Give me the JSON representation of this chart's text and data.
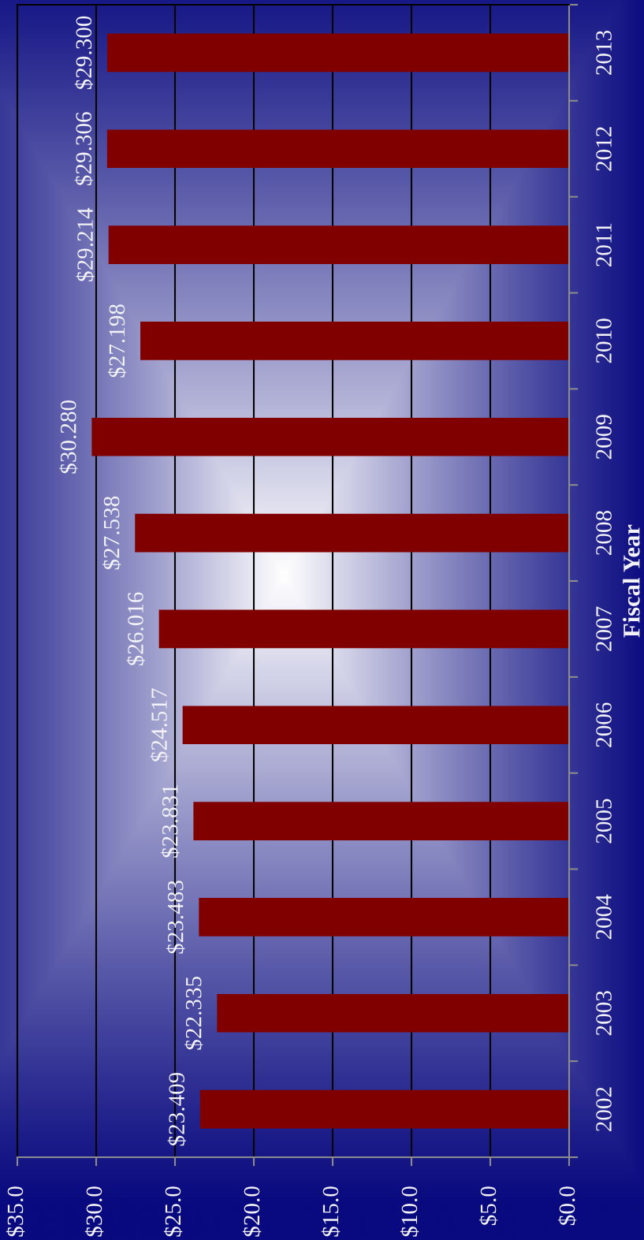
{
  "chart_data": {
    "type": "bar",
    "orientation": "horizontal",
    "ylabel": "Fiscal Year",
    "categories": [
      "2013",
      "2012",
      "2011",
      "2010",
      "2009",
      "2008",
      "2007",
      "2006",
      "2005",
      "2004",
      "2003",
      "2002"
    ],
    "values": [
      29.3,
      29.306,
      29.214,
      27.198,
      30.28,
      27.538,
      26.016,
      24.517,
      23.831,
      23.483,
      22.335,
      23.409
    ],
    "value_labels": [
      "$29.300",
      "$29.306",
      "$29.214",
      "$27.198",
      "$30.280",
      "$27.538",
      "$26.016",
      "$24.517",
      "$23.831",
      "$23.483",
      "$22.335",
      "$23.409"
    ],
    "color": "#800000",
    "xlim": [
      35,
      0
    ],
    "xticks": [
      {
        "value": 35,
        "label": "$35.0"
      },
      {
        "value": 30,
        "label": "$30.0"
      },
      {
        "value": 25,
        "label": "$25.0"
      },
      {
        "value": 20,
        "label": "$20.0"
      },
      {
        "value": 15,
        "label": "$15.0"
      },
      {
        "value": 10,
        "label": "$10.0"
      },
      {
        "value": 5,
        "label": "$5.0"
      },
      {
        "value": 0,
        "label": "$0.0"
      }
    ],
    "grid": "x"
  }
}
